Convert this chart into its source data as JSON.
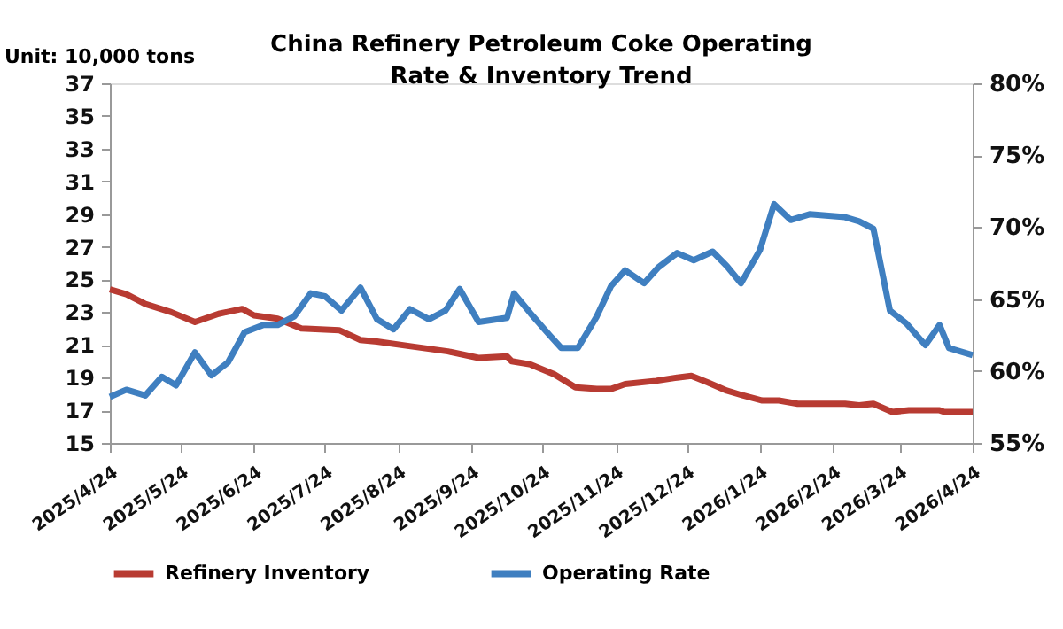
{
  "chart_data": {
    "type": "line",
    "title": "China Refinery Petroleum Coke Operating\nRate & Inventory Trend",
    "ylabel": "Unit: 10,000 tons",
    "xlim": [
      "2025-04-24",
      "2026-04-24"
    ],
    "xticks": [
      {
        "value": "2025-04-24",
        "label": "2025/4/24"
      },
      {
        "value": "2025-05-24",
        "label": "2025/5/24"
      },
      {
        "value": "2025-06-24",
        "label": "2025/6/24"
      },
      {
        "value": "2025-07-24",
        "label": "2025/7/24"
      },
      {
        "value": "2025-08-24",
        "label": "2025/8/24"
      },
      {
        "value": "2025-09-24",
        "label": "2025/9/24"
      },
      {
        "value": "2025-10-24",
        "label": "2025/10/24"
      },
      {
        "value": "2025-11-24",
        "label": "2025/11/24"
      },
      {
        "value": "2025-12-24",
        "label": "2025/12/24"
      },
      {
        "value": "2026-01-24",
        "label": "2026/1/24"
      },
      {
        "value": "2026-02-24",
        "label": "2026/2/24"
      },
      {
        "value": "2026-03-24",
        "label": "2026/3/24"
      },
      {
        "value": "2026-04-24",
        "label": "2026/4/24"
      }
    ],
    "ylim": [
      15,
      37
    ],
    "yticks": [
      15,
      17,
      19,
      21,
      23,
      25,
      27,
      29,
      31,
      33,
      35,
      37
    ],
    "y2lim": [
      55,
      80
    ],
    "y2ticks": [
      {
        "value": 55,
        "label": "55%"
      },
      {
        "value": 60,
        "label": "60%"
      },
      {
        "value": 65,
        "label": "65%"
      },
      {
        "value": 70,
        "label": "70%"
      },
      {
        "value": 75,
        "label": "75%"
      },
      {
        "value": 80,
        "label": "80%"
      }
    ],
    "grid": false,
    "legend": "bottom",
    "line_style": "solid",
    "marker": "none",
    "series": [
      {
        "name": "Refinery Inventory",
        "color": "#b83b32",
        "axis": "y",
        "x": [
          "2025-04-24",
          "2025-05-01",
          "2025-05-09",
          "2025-05-20",
          "2025-05-30",
          "2025-06-09",
          "2025-06-19",
          "2025-06-24",
          "2025-07-04",
          "2025-07-14",
          "2025-07-30",
          "2025-08-08",
          "2025-08-15",
          "2025-08-30",
          "2025-09-14",
          "2025-09-27",
          "2025-10-09",
          "2025-10-11",
          "2025-10-19",
          "2025-10-29",
          "2025-11-07",
          "2025-11-16",
          "2025-11-22",
          "2025-11-28",
          "2025-12-11",
          "2025-12-20",
          "2025-12-26",
          "2026-01-02",
          "2026-01-10",
          "2026-01-17",
          "2026-01-25",
          "2026-02-01",
          "2026-02-09",
          "2026-03-01",
          "2026-03-07",
          "2026-03-13",
          "2026-03-21",
          "2026-03-28",
          "2026-04-10",
          "2026-04-12",
          "2026-04-24"
        ],
        "values": [
          24.4,
          24.1,
          23.5,
          23.0,
          22.4,
          22.9,
          23.2,
          22.8,
          22.6,
          22.0,
          21.9,
          21.3,
          21.2,
          20.9,
          20.6,
          20.2,
          20.3,
          20.0,
          19.8,
          19.2,
          18.4,
          18.3,
          18.3,
          18.6,
          18.8,
          19.0,
          19.1,
          18.7,
          18.2,
          17.9,
          17.6,
          17.6,
          17.4,
          17.4,
          17.3,
          17.4,
          16.9,
          17.0,
          17.0,
          16.9,
          16.9
        ]
      },
      {
        "name": "Operating Rate",
        "color": "#3f7fc0",
        "axis": "y2",
        "x": [
          "2025-04-24",
          "2025-05-01",
          "2025-05-09",
          "2025-05-16",
          "2025-05-22",
          "2025-05-30",
          "2025-06-06",
          "2025-06-13",
          "2025-06-20",
          "2025-06-28",
          "2025-07-04",
          "2025-07-11",
          "2025-07-18",
          "2025-07-24",
          "2025-07-31",
          "2025-08-08",
          "2025-08-15",
          "2025-08-22",
          "2025-08-29",
          "2025-09-06",
          "2025-09-13",
          "2025-09-19",
          "2025-09-27",
          "2025-10-09",
          "2025-10-12",
          "2025-10-19",
          "2025-10-27",
          "2025-11-01",
          "2025-11-08",
          "2025-11-16",
          "2025-11-22",
          "2025-11-28",
          "2025-12-06",
          "2025-12-12",
          "2025-12-20",
          "2025-12-27",
          "2026-01-04",
          "2026-01-10",
          "2026-01-16",
          "2026-01-24",
          "2026-01-30",
          "2026-02-06",
          "2026-02-14",
          "2026-03-01",
          "2026-03-07",
          "2026-03-13",
          "2026-03-20",
          "2026-03-27",
          "2026-04-04",
          "2026-04-10",
          "2026-04-14",
          "2026-04-24"
        ],
        "values": [
          58.2,
          58.7,
          58.3,
          59.6,
          59.0,
          61.3,
          59.7,
          60.6,
          62.7,
          63.2,
          63.2,
          63.8,
          65.4,
          65.2,
          64.2,
          65.8,
          63.6,
          62.9,
          64.3,
          63.6,
          64.2,
          65.7,
          63.4,
          63.7,
          65.4,
          64.0,
          62.5,
          61.6,
          61.6,
          63.8,
          65.9,
          67.0,
          66.1,
          67.2,
          68.2,
          67.7,
          68.3,
          67.3,
          66.1,
          68.4,
          71.6,
          70.5,
          70.9,
          70.7,
          70.4,
          69.9,
          64.2,
          63.3,
          61.8,
          63.2,
          61.6,
          61.1
        ]
      }
    ]
  }
}
